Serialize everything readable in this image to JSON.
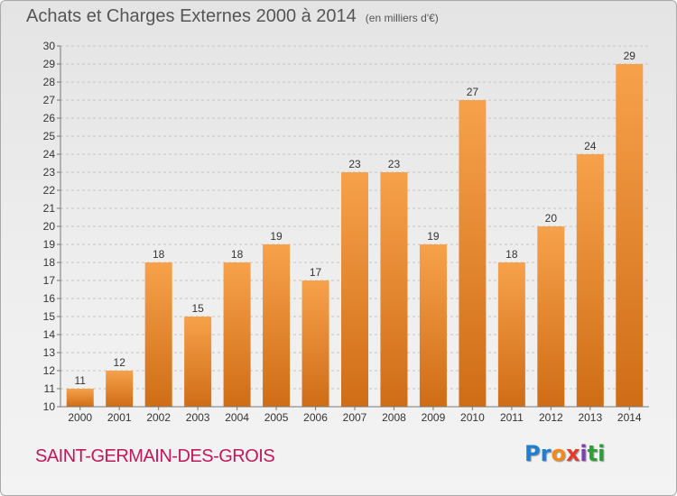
{
  "header": {
    "title": "Achats et Charges Externes 2000 à 2014",
    "subtitle": "(en milliers d'€)"
  },
  "footer": {
    "commune": "SAINT-GERMAIN-DES-GROIS",
    "logo": [
      "Pr",
      "o",
      "x",
      "i",
      "ti"
    ]
  },
  "colors": {
    "bar_light": "#f7a14b",
    "bar_dark": "#cf6d16",
    "commune": "#c2185b"
  },
  "chart_data": {
    "type": "bar",
    "categories": [
      "2000",
      "2001",
      "2002",
      "2003",
      "2004",
      "2005",
      "2006",
      "2007",
      "2008",
      "2009",
      "2010",
      "2011",
      "2012",
      "2013",
      "2014"
    ],
    "values": [
      11,
      12,
      18,
      15,
      18,
      19,
      17,
      23,
      23,
      19,
      27,
      18,
      20,
      24,
      29
    ],
    "data_labels": [
      "11",
      "12",
      "18",
      "15",
      "18",
      "19",
      "17",
      "23",
      "23",
      "19",
      "27",
      "18",
      "20",
      "24",
      "29"
    ],
    "ylim": [
      10,
      30
    ],
    "yticks": [
      "10",
      "11",
      "12",
      "13",
      "14",
      "15",
      "16",
      "17",
      "18",
      "19",
      "20",
      "21",
      "22",
      "23",
      "24",
      "25",
      "26",
      "27",
      "28",
      "29",
      "30"
    ],
    "grid": true,
    "legend": false
  }
}
